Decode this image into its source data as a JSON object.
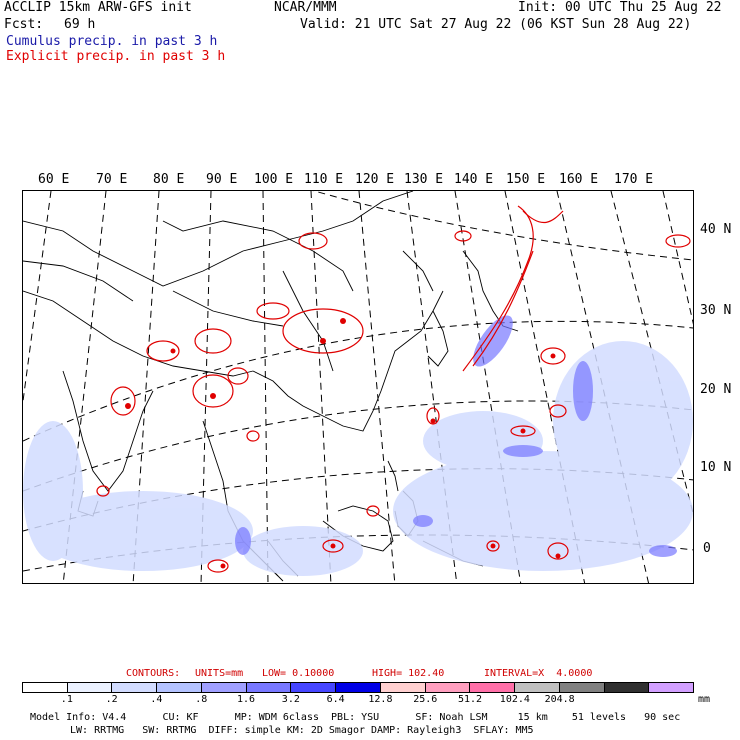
{
  "header": {
    "model": "ACCLIP 15km ARW-GFS init",
    "fcst_label": "Fcst:",
    "fcst_value": "69 h",
    "center": "NCAR/MMM",
    "init": "Init: 00 UTC Thu 25 Aug 22",
    "valid": "Valid: 21 UTC Sat 27 Aug 22 (06 KST Sun 28 Aug 22)",
    "legend_cumulus": "Cumulus precip. in past 3 h",
    "legend_explicit": "Explicit precip. in past 3 h"
  },
  "lon_labels": [
    "60 E",
    "70 E",
    "80 E",
    "90 E",
    "100 E",
    "110 E",
    "120 E",
    "130 E",
    "140 E",
    "150 E",
    "160 E",
    "170 E"
  ],
  "lat_labels": [
    "40 N",
    "30 N",
    "20 N",
    "10 N",
    "0"
  ],
  "contours": {
    "label": "CONTOURS:",
    "units": "UNITS=mm",
    "low": "LOW= 0.10000",
    "high": "HIGH= 102.40",
    "interval": "INTERVAL=X  4.0000"
  },
  "colorbar": {
    "colors": [
      "#ffffff",
      "#ebf1ff",
      "#d2dcff",
      "#b4c3ff",
      "#a0a0ff",
      "#7878ff",
      "#4646ff",
      "#0000e6",
      "#ffd0d0",
      "#ff9fbf",
      "#ff70a8",
      "#c0c0c0",
      "#808080",
      "#303030",
      "#d2a0ff"
    ],
    "labels": [
      ".1",
      ".2",
      ".4",
      ".8",
      "1.6",
      "3.2",
      "6.4",
      "12.8",
      "25.6",
      "51.2",
      "102.4",
      "204.8"
    ],
    "unit": "mm"
  },
  "footer": {
    "line1": "Model Info: V4.4      CU: KF      MP: WDM 6class  PBL: YSU      SF: Noah LSM     15 km    51 levels   90 sec",
    "line2": "LW: RRTMG   SW: RRTMG  DIFF: simple KM: 2D Smagor DAMP: Rayleigh3  SFLAY: MM5"
  }
}
